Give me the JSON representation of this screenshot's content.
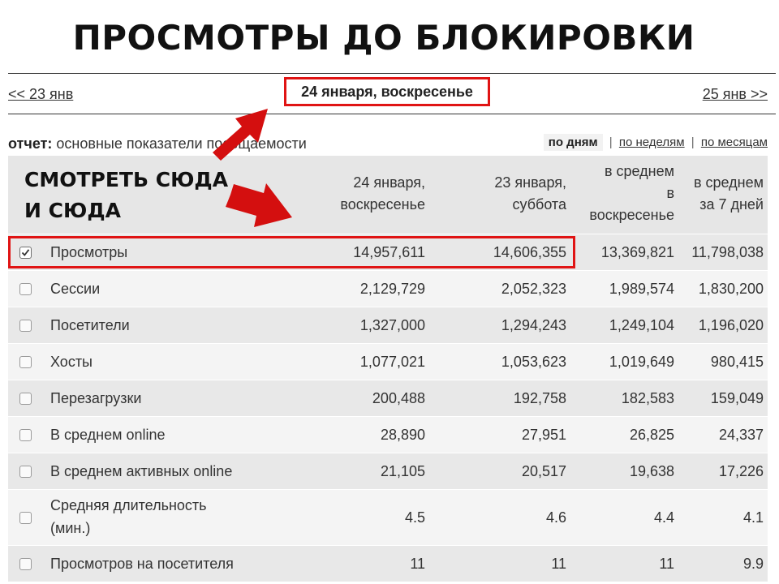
{
  "slide_title": "ПРОСМОТРЫ ДО БЛОКИРОВКИ",
  "annotation": {
    "line1": "СМОТРЕТЬ СЮДА",
    "line2": "И СЮДА"
  },
  "nav": {
    "prev": "<< 23 янв",
    "current": "24 января, воскресенье",
    "next": "25 янв >>"
  },
  "report": {
    "label": "отчет:",
    "value": "основные показатели посещаемости"
  },
  "periods": {
    "active": "по дням",
    "weeks": "по неделям",
    "months": "по месяцам",
    "separator": "|"
  },
  "columns": [
    {
      "line1": "24 января,",
      "line2": "воскресенье"
    },
    {
      "line1": "23 января,",
      "line2": "суббота"
    },
    {
      "line1": "в среднем",
      "line2": "в",
      "line3": "воскресенье"
    },
    {
      "line1": "в среднем",
      "line2": "за 7 дней"
    }
  ],
  "rows": [
    {
      "label": "Просмотры",
      "checked": true,
      "values": [
        "14,957,611",
        "14,606,355",
        "13,369,821",
        "11,798,038"
      ]
    },
    {
      "label": "Сессии",
      "checked": false,
      "values": [
        "2,129,729",
        "2,052,323",
        "1,989,574",
        "1,830,200"
      ]
    },
    {
      "label": "Посетители",
      "checked": false,
      "values": [
        "1,327,000",
        "1,294,243",
        "1,249,104",
        "1,196,020"
      ]
    },
    {
      "label": "Хосты",
      "checked": false,
      "values": [
        "1,077,021",
        "1,053,623",
        "1,019,649",
        "980,415"
      ]
    },
    {
      "label": "Перезагрузки",
      "checked": false,
      "values": [
        "200,488",
        "192,758",
        "182,583",
        "159,049"
      ]
    },
    {
      "label": "В среднем online",
      "checked": false,
      "values": [
        "28,890",
        "27,951",
        "26,825",
        "24,337"
      ]
    },
    {
      "label": "В среднем активных online",
      "checked": false,
      "values": [
        "21,105",
        "20,517",
        "19,638",
        "17,226"
      ]
    },
    {
      "label_line1": "Средняя длительность",
      "label_line2": "(мин.)",
      "checked": false,
      "values": [
        "4.5",
        "4.6",
        "4.4",
        "4.1"
      ]
    },
    {
      "label": "Просмотров на посетителя",
      "checked": false,
      "values": [
        "11",
        "11",
        "11",
        "9.9"
      ]
    }
  ],
  "colors": {
    "highlight": "#e01414",
    "row_odd": "#e8e8e8",
    "row_even": "#f4f4f4",
    "header": "#e6e6e6"
  }
}
